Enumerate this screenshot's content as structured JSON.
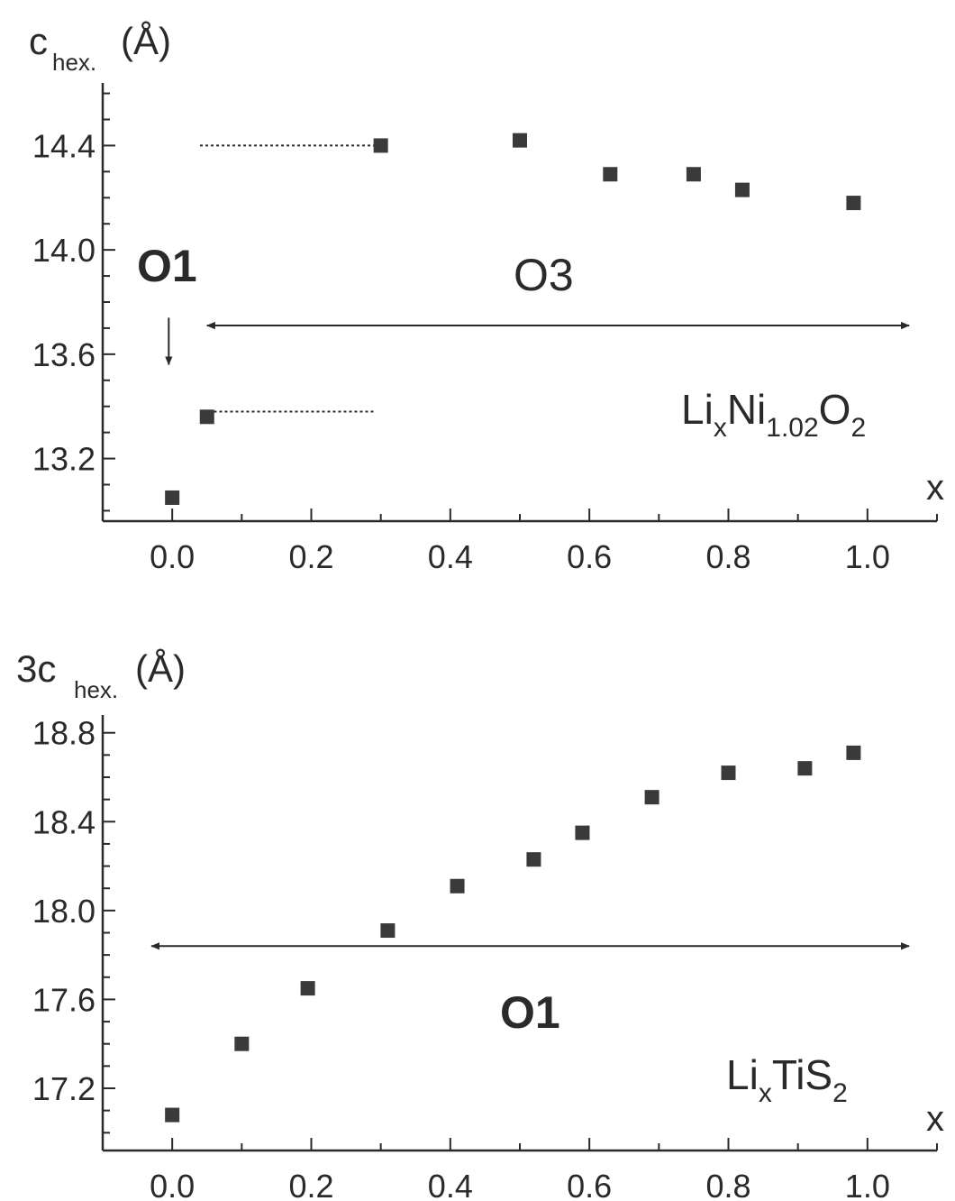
{
  "chart_data": [
    {
      "type": "scatter",
      "title": "",
      "ylabel": {
        "main": "c",
        "sub": "hex.",
        "unit": "(Å)"
      },
      "xlabel": "x",
      "xlim": [
        -0.1,
        1.1
      ],
      "ylim": [
        12.96,
        14.64
      ],
      "xticks": [
        "0.0",
        "0.2",
        "0.4",
        "0.6",
        "0.8",
        "1.0"
      ],
      "yticks": [
        "13.2",
        "13.6",
        "14.0",
        "14.4"
      ],
      "formula": {
        "p1": "Li",
        "s1": "x",
        "p2": "Ni",
        "s2": "1.02",
        "p3": "O",
        "s3": "2"
      },
      "annotations": {
        "o1": "O1",
        "o3": "O3"
      },
      "points": [
        {
          "x": 0.0,
          "y": 13.05
        },
        {
          "x": 0.05,
          "y": 13.36
        },
        {
          "x": 0.3,
          "y": 14.4
        },
        {
          "x": 0.5,
          "y": 14.42
        },
        {
          "x": 0.63,
          "y": 14.29
        },
        {
          "x": 0.75,
          "y": 14.29
        },
        {
          "x": 0.82,
          "y": 14.23
        },
        {
          "x": 0.98,
          "y": 14.18
        }
      ],
      "guides": {
        "dotted_upper": {
          "x": [
            0.04,
            0.29
          ],
          "y": 14.4
        },
        "dotted_lower": {
          "x": [
            0.06,
            0.29
          ],
          "y": 13.38
        },
        "range_arrow": {
          "x": [
            0.05,
            1.06
          ],
          "y": 13.71
        },
        "o1_arrow": {
          "x": -0.005,
          "y": [
            13.74,
            13.56
          ]
        }
      }
    },
    {
      "type": "scatter",
      "title": "",
      "ylabel": {
        "main": "3c",
        "sub": "hex.",
        "unit": "(Å)"
      },
      "xlabel": "x",
      "xlim": [
        -0.1,
        1.1
      ],
      "ylim": [
        16.92,
        18.88
      ],
      "xticks": [
        "0.0",
        "0.2",
        "0.4",
        "0.6",
        "0.8",
        "1.0"
      ],
      "yticks": [
        "17.2",
        "17.6",
        "18.0",
        "18.4",
        "18.8"
      ],
      "formula": {
        "p1": "Li",
        "s1": "x",
        "p2": "TiS",
        "s2": "2"
      },
      "annotations": {
        "o1": "O1"
      },
      "points": [
        {
          "x": 0.0,
          "y": 17.08
        },
        {
          "x": 0.1,
          "y": 17.4
        },
        {
          "x": 0.195,
          "y": 17.65
        },
        {
          "x": 0.31,
          "y": 17.91
        },
        {
          "x": 0.41,
          "y": 18.11
        },
        {
          "x": 0.52,
          "y": 18.23
        },
        {
          "x": 0.59,
          "y": 18.35
        },
        {
          "x": 0.69,
          "y": 18.51
        },
        {
          "x": 0.8,
          "y": 18.62
        },
        {
          "x": 0.91,
          "y": 18.64
        },
        {
          "x": 0.98,
          "y": 18.71
        }
      ],
      "guides": {
        "range_arrow": {
          "x": [
            -0.03,
            1.06
          ],
          "y": 17.84
        }
      }
    }
  ]
}
